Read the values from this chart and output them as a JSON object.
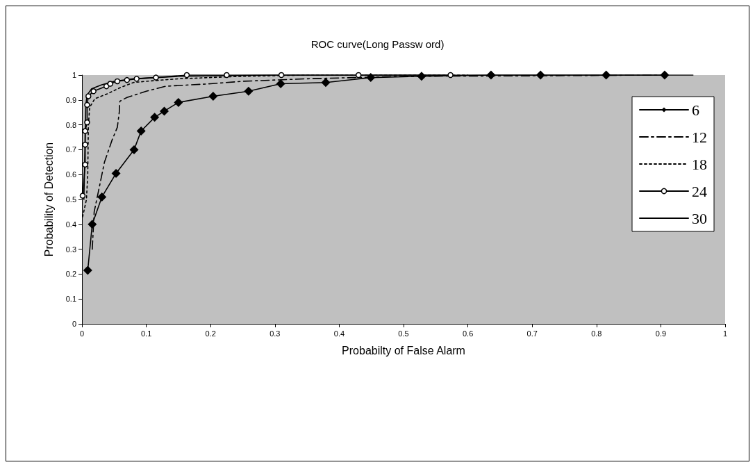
{
  "chart_data": {
    "type": "line",
    "title": "ROC curve(Long Passw ord)",
    "xlabel": "Probabilty of False Alarm",
    "ylabel": "Probability of Detection",
    "xlim": [
      0,
      1
    ],
    "ylim": [
      0,
      1
    ],
    "xticks": [
      0,
      0.1,
      0.2,
      0.3,
      0.4,
      0.5,
      0.6,
      0.7,
      0.8,
      0.9,
      1
    ],
    "yticks": [
      0,
      0.1,
      0.2,
      0.3,
      0.4,
      0.5,
      0.6,
      0.7,
      0.8,
      0.9,
      1
    ],
    "grid": false,
    "legend": "top right",
    "series": [
      {
        "name": "6",
        "color": "#000000",
        "marker": "diamond",
        "line_style": "solid",
        "x": [
          0.009,
          0.016,
          0.031,
          0.053,
          0.081,
          0.092,
          0.113,
          0.128,
          0.15,
          0.204,
          0.259,
          0.309,
          0.379,
          0.449,
          0.528,
          0.636,
          0.713,
          0.815,
          0.906
        ],
        "values": [
          0.215,
          0.4,
          0.51,
          0.605,
          0.7,
          0.775,
          0.83,
          0.855,
          0.89,
          0.915,
          0.935,
          0.965,
          0.97,
          0.99,
          0.995,
          1.0,
          1.0,
          1.0,
          1.0
        ]
      },
      {
        "name": "12",
        "color": "#000000",
        "marker": "none",
        "line_style": "dashdot",
        "x": [
          0.016,
          0.019,
          0.027,
          0.035,
          0.047,
          0.055,
          0.058,
          0.059,
          0.07,
          0.1,
          0.13,
          0.2,
          0.25,
          0.35,
          0.5,
          0.7,
          0.9
        ],
        "values": [
          0.3,
          0.45,
          0.55,
          0.65,
          0.74,
          0.79,
          0.85,
          0.895,
          0.91,
          0.935,
          0.955,
          0.965,
          0.975,
          0.985,
          0.995,
          0.997,
          1.0
        ]
      },
      {
        "name": "18",
        "color": "#000000",
        "marker": "none",
        "line_style": "dotted",
        "x": [
          0.001,
          0.007,
          0.009,
          0.01,
          0.012,
          0.02,
          0.04,
          0.06,
          0.08,
          0.1,
          0.15,
          0.25,
          0.35,
          0.6
        ],
        "values": [
          0.43,
          0.5,
          0.6,
          0.8,
          0.87,
          0.905,
          0.925,
          0.95,
          0.97,
          0.975,
          0.985,
          0.995,
          1.0,
          1.0
        ]
      },
      {
        "name": "24",
        "color": "#000000",
        "marker": "circle",
        "line_style": "solid",
        "x": [
          0.001,
          0.005,
          0.005,
          0.005,
          0.008,
          0.008,
          0.01,
          0.018,
          0.038,
          0.044,
          0.055,
          0.07,
          0.085,
          0.115,
          0.163,
          0.225,
          0.31,
          0.43,
          0.573
        ],
        "values": [
          0.515,
          0.64,
          0.72,
          0.775,
          0.81,
          0.88,
          0.915,
          0.935,
          0.955,
          0.965,
          0.975,
          0.98,
          0.985,
          0.99,
          1.0,
          1.0,
          1.0,
          1.0,
          1.0
        ]
      },
      {
        "name": "30",
        "color": "#000000",
        "marker": "none",
        "line_style": "solid",
        "x": [
          0.003,
          0.005,
          0.006,
          0.008,
          0.015,
          0.03,
          0.05,
          0.08,
          0.15,
          0.3,
          0.95
        ],
        "values": [
          0.5,
          0.75,
          0.88,
          0.92,
          0.945,
          0.96,
          0.975,
          0.985,
          0.995,
          1.0,
          1.0
        ]
      }
    ]
  }
}
